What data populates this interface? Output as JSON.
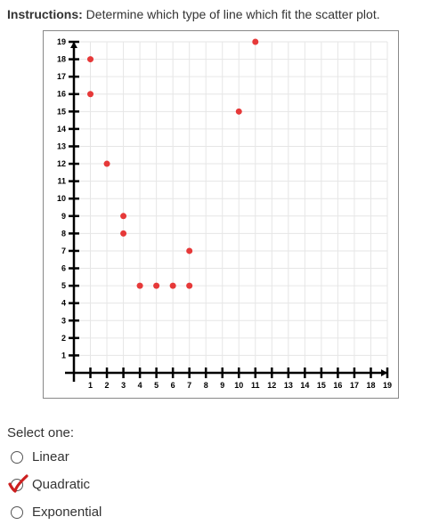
{
  "instructions": {
    "label": "Instructions:",
    "text": " Determine which type of line which fit the scatter plot."
  },
  "chart": {
    "type": "scatter",
    "xlim": [
      0,
      19
    ],
    "ylim": [
      0,
      19
    ],
    "xtick_step": 1,
    "ytick_step": 1,
    "x_labels": [
      1,
      2,
      3,
      4,
      5,
      6,
      7,
      8,
      9,
      10,
      11,
      12,
      13,
      14,
      15,
      16,
      17,
      18,
      19
    ],
    "y_labels": [
      1,
      2,
      3,
      4,
      5,
      6,
      7,
      8,
      9,
      10,
      11,
      12,
      13,
      14,
      15,
      16,
      17,
      18,
      19
    ],
    "tick_label_fontsize": 9,
    "axis_color": "#000000",
    "axis_width": 2.5,
    "grid_color": "#e6e6e6",
    "grid_width": 1,
    "tick_length": 6,
    "background_color": "#ffffff",
    "point_color": "#e63939",
    "point_radius": 3.5,
    "points": [
      {
        "x": 1,
        "y": 18
      },
      {
        "x": 1,
        "y": 16
      },
      {
        "x": 2,
        "y": 12
      },
      {
        "x": 3,
        "y": 9
      },
      {
        "x": 3,
        "y": 8
      },
      {
        "x": 4,
        "y": 5
      },
      {
        "x": 5,
        "y": 5
      },
      {
        "x": 6,
        "y": 5
      },
      {
        "x": 7,
        "y": 5
      },
      {
        "x": 7,
        "y": 7
      },
      {
        "x": 10,
        "y": 15
      },
      {
        "x": 11,
        "y": 19
      }
    ]
  },
  "select": {
    "label": "Select one:",
    "options": [
      {
        "value": "linear",
        "label": "Linear",
        "selected": false
      },
      {
        "value": "quadratic",
        "label": "Quadratic",
        "selected": true
      },
      {
        "value": "exponential",
        "label": "Exponential",
        "selected": false
      }
    ],
    "check_color": "#cc1f1f"
  }
}
